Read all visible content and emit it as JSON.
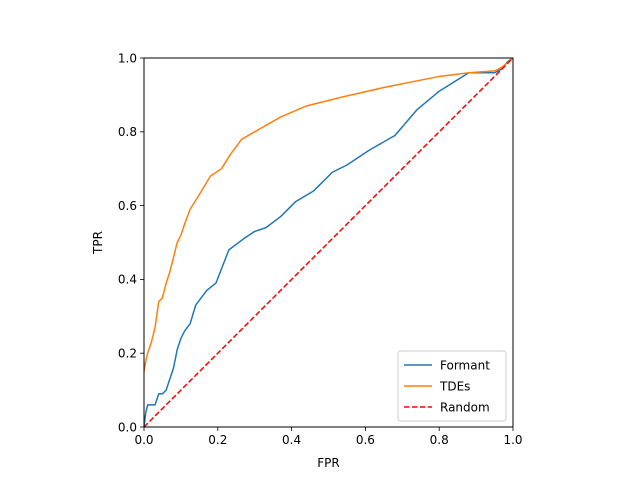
{
  "chart_data": {
    "type": "line",
    "title": "",
    "xlabel": "FPR",
    "ylabel": "TPR",
    "xlim": [
      0.0,
      1.0
    ],
    "ylim": [
      0.0,
      1.0
    ],
    "xticks": [
      "0.0",
      "0.2",
      "0.4",
      "0.6",
      "0.8",
      "1.0"
    ],
    "yticks": [
      "0.0",
      "0.2",
      "0.4",
      "0.6",
      "0.8",
      "1.0"
    ],
    "grid": false,
    "legend_position": "lower-right",
    "series": [
      {
        "name": "Formant",
        "color": "#1f77b4",
        "style": "solid",
        "x": [
          0.0,
          0.005,
          0.01,
          0.02,
          0.03,
          0.04,
          0.05,
          0.06,
          0.07,
          0.08,
          0.09,
          0.1,
          0.11,
          0.125,
          0.14,
          0.17,
          0.195,
          0.23,
          0.27,
          0.3,
          0.33,
          0.37,
          0.41,
          0.46,
          0.51,
          0.55,
          0.61,
          0.68,
          0.74,
          0.8,
          0.88,
          0.95,
          0.97,
          0.985,
          1.0
        ],
        "y": [
          0.0,
          0.04,
          0.06,
          0.06,
          0.06,
          0.09,
          0.09,
          0.1,
          0.13,
          0.16,
          0.21,
          0.24,
          0.26,
          0.28,
          0.33,
          0.37,
          0.39,
          0.48,
          0.51,
          0.53,
          0.54,
          0.57,
          0.61,
          0.64,
          0.69,
          0.71,
          0.75,
          0.79,
          0.86,
          0.91,
          0.96,
          0.96,
          0.97,
          0.99,
          1.0
        ]
      },
      {
        "name": "TDEs",
        "color": "#ff7f0e",
        "style": "solid",
        "x": [
          0.0,
          0.005,
          0.01,
          0.02,
          0.03,
          0.04,
          0.05,
          0.06,
          0.07,
          0.08,
          0.09,
          0.1,
          0.11,
          0.125,
          0.15,
          0.18,
          0.21,
          0.235,
          0.265,
          0.3,
          0.37,
          0.44,
          0.54,
          0.65,
          0.8,
          0.88,
          0.95,
          0.97,
          1.0
        ],
        "y": [
          0.15,
          0.18,
          0.2,
          0.23,
          0.27,
          0.34,
          0.35,
          0.39,
          0.42,
          0.46,
          0.5,
          0.52,
          0.55,
          0.59,
          0.63,
          0.68,
          0.7,
          0.74,
          0.78,
          0.8,
          0.84,
          0.87,
          0.895,
          0.92,
          0.95,
          0.96,
          0.965,
          0.975,
          1.0
        ]
      },
      {
        "name": "Random",
        "color": "#ff0000",
        "style": "dashed",
        "x": [
          0.0,
          1.0
        ],
        "y": [
          0.0,
          1.0
        ]
      }
    ]
  }
}
